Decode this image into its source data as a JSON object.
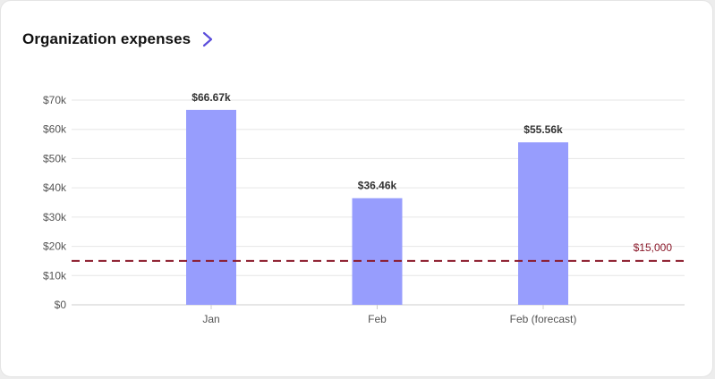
{
  "card": {
    "title": "Organization expenses",
    "nav_icon": "chevron-right-icon"
  },
  "colors": {
    "bar": "#979dfd",
    "grid": "#e6e6e6",
    "axis": "#cccccc",
    "reference": "#8b1a2b",
    "accent": "#5b4ddb"
  },
  "chart_data": {
    "type": "bar",
    "categories": [
      "Jan",
      "Feb",
      "Feb (forecast)"
    ],
    "values": [
      66670,
      36460,
      55560
    ],
    "value_labels": [
      "$66.67k",
      "$36.46k",
      "$55.56k"
    ],
    "title": "",
    "xlabel": "",
    "ylabel": "",
    "ylim": [
      0,
      70000
    ],
    "yticks": [
      0,
      10000,
      20000,
      30000,
      40000,
      50000,
      60000,
      70000
    ],
    "ytick_labels": [
      "$0",
      "$10k",
      "$20k",
      "$30k",
      "$40k",
      "$50k",
      "$60k",
      "$70k"
    ],
    "grid": true,
    "legend": "none",
    "reference_line": {
      "value": 15000,
      "label": "$15,000",
      "style": "dashed"
    }
  }
}
